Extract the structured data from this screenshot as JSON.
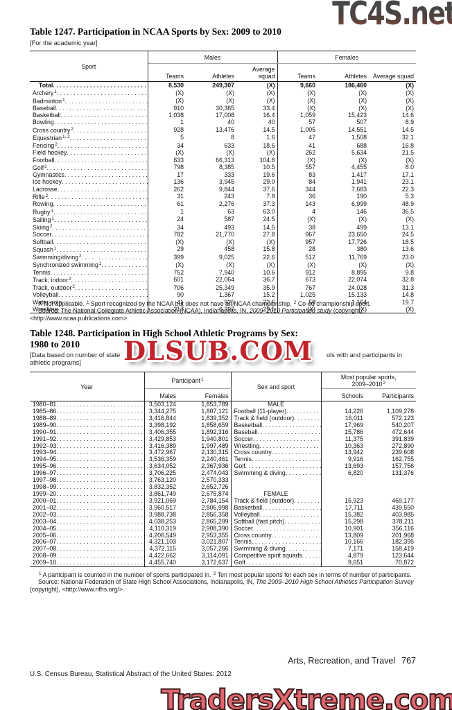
{
  "watermarks": {
    "top_label": "TC4S.net",
    "middle_label": "DLSUB.COM",
    "bottom_label": "TradersXtreme.com"
  },
  "table1247": {
    "title": "Table 1247. Participation in NCAA Sports by Sex: 2009 to 2010",
    "note": "[For the academic year]",
    "header": {
      "sport": "Sport",
      "males": "Males",
      "females": "Females",
      "teams": "Teams",
      "athletes": "Athletes",
      "avg_squad": "Average squad"
    },
    "rows": [
      {
        "label": "Total",
        "sup": "",
        "bold": true,
        "m": [
          "8,530",
          "249,307",
          "(X)"
        ],
        "f": [
          "9,660",
          "186,460",
          "(X)"
        ]
      },
      {
        "label": "Archery",
        "sup": "1",
        "m": [
          "(X)",
          "(X)",
          "(X)"
        ],
        "f": [
          "(X)",
          "(X)",
          "(X)"
        ]
      },
      {
        "label": "Badminton",
        "sup": "1",
        "m": [
          "(X)",
          "(X)",
          "(X)"
        ],
        "f": [
          "(X)",
          "(X)",
          "(X)"
        ]
      },
      {
        "label": "Baseball",
        "sup": "",
        "m": [
          "910",
          "30,365",
          "33.4"
        ],
        "f": [
          "(X)",
          "(X)",
          "(X)"
        ]
      },
      {
        "label": "Basketball",
        "sup": "",
        "m": [
          "1,038",
          "17,008",
          "16.4"
        ],
        "f": [
          "1,059",
          "15,423",
          "14.6"
        ]
      },
      {
        "label": "Bowling",
        "sup": "",
        "m": [
          "1",
          "40",
          "40"
        ],
        "f": [
          "57",
          "507",
          "8.9"
        ]
      },
      {
        "label": "Cross country",
        "sup": "2",
        "m": [
          "928",
          "13,476",
          "14.5"
        ],
        "f": [
          "1,005",
          "14,551",
          "14.5"
        ]
      },
      {
        "label": "Equestrian",
        "sup": "1, 2",
        "m": [
          "5",
          "8",
          "1.6"
        ],
        "f": [
          "47",
          "1,508",
          "32.1"
        ]
      },
      {
        "label": "Fencing",
        "sup": "2",
        "m": [
          "34",
          "633",
          "18.6"
        ],
        "f": [
          "41",
          "688",
          "16.8"
        ]
      },
      {
        "label": "Field hockey",
        "sup": "",
        "m": [
          "(X)",
          "(X)",
          "(X)"
        ],
        "f": [
          "262",
          "5,634",
          "21.5"
        ]
      },
      {
        "label": "Football",
        "sup": "",
        "m": [
          "633",
          "66,313",
          "104.8"
        ],
        "f": [
          "(X)",
          "(X)",
          "(X)"
        ]
      },
      {
        "label": "Golf",
        "sup": "2",
        "m": [
          "798",
          "8,385",
          "10.5"
        ],
        "f": [
          "557",
          "4,455",
          "8.0"
        ]
      },
      {
        "label": "Gymnastics",
        "sup": "",
        "m": [
          "17",
          "333",
          "19.6"
        ],
        "f": [
          "83",
          "1,417",
          "17.1"
        ]
      },
      {
        "label": "Ice hockey",
        "sup": "",
        "m": [
          "136",
          "3,945",
          "29.0"
        ],
        "f": [
          "84",
          "1,941",
          "23.1"
        ]
      },
      {
        "label": "Lacrosse",
        "sup": "",
        "m": [
          "262",
          "9,844",
          "37.6"
        ],
        "f": [
          "344",
          "7,683",
          "22.3"
        ]
      },
      {
        "label": "Rifle",
        "sup": "2",
        "m": [
          "31",
          "243",
          "7.8"
        ],
        "f": [
          "36",
          "190",
          "5.3"
        ]
      },
      {
        "label": "Rowing",
        "sup": "",
        "m": [
          "61",
          "2,276",
          "37.3"
        ],
        "f": [
          "143",
          "6,999",
          "48.9"
        ]
      },
      {
        "label": "Rugby",
        "sup": "1",
        "m": [
          "1",
          "63",
          "63.0"
        ],
        "f": [
          "4",
          "146",
          "36.5"
        ]
      },
      {
        "label": "Sailing",
        "sup": "1",
        "m": [
          "24",
          "587",
          "24.5"
        ],
        "f": [
          "(X)",
          "(X)",
          "(X)"
        ]
      },
      {
        "label": "Skiing",
        "sup": "2",
        "m": [
          "34",
          "493",
          "14.5"
        ],
        "f": [
          "38",
          "499",
          "13.1"
        ]
      },
      {
        "label": "Soccer",
        "sup": "",
        "m": [
          "782",
          "21,770",
          "27.8"
        ],
        "f": [
          "967",
          "23,650",
          "24.5"
        ]
      },
      {
        "label": "Softball",
        "sup": "",
        "m": [
          "(X)",
          "(X)",
          "(X)"
        ],
        "f": [
          "957",
          "17,726",
          "18.5"
        ]
      },
      {
        "label": "Squash",
        "sup": "1",
        "m": [
          "29",
          "458",
          "15.8"
        ],
        "f": [
          "28",
          "380",
          "13.6"
        ]
      },
      {
        "label": "Swimming/diving",
        "sup": "2",
        "m": [
          "399",
          "9,025",
          "22.6"
        ],
        "f": [
          "512",
          "11,769",
          "23.0"
        ]
      },
      {
        "label": "Synchronized swimming",
        "sup": "1",
        "m": [
          "(X)",
          "(X)",
          "(X)"
        ],
        "f": [
          "(X)",
          "(X)",
          "(X)"
        ]
      },
      {
        "label": "Tennis",
        "sup": "",
        "m": [
          "752",
          "7,940",
          "10.6"
        ],
        "f": [
          "912",
          "8,895",
          "9.8"
        ]
      },
      {
        "label": "Track, indoor",
        "sup": "2",
        "m": [
          "601",
          "22,064",
          "36.7"
        ],
        "f": [
          "673",
          "22,074",
          "32.8"
        ]
      },
      {
        "label": "Track, outdoor",
        "sup": "2",
        "m": [
          "706",
          "25,349",
          "35.9"
        ],
        "f": [
          "767",
          "24,028",
          "31.3"
        ]
      },
      {
        "label": "Volleyball",
        "sup": "",
        "m": [
          "90",
          "1,367",
          "15.2"
        ],
        "f": [
          "1,025",
          "15,133",
          "14.8"
        ]
      },
      {
        "label": "Water polo",
        "sup": "",
        "m": [
          "41",
          "925",
          "22.6"
        ],
        "f": [
          "59",
          "1,164",
          "19.7"
        ]
      },
      {
        "label": "Wrestling",
        "sup": "",
        "m": [
          "217",
          "6,397",
          "29.5"
        ],
        "f": [
          "(X)",
          "(X)",
          "(X)"
        ]
      }
    ],
    "footnotes": [
      {
        "segs": [
          {
            "t": "X Not applicable. "
          },
          {
            "t": "1",
            "sup": true
          },
          {
            "t": " Sport recognized by the NCAA but does not have an NCAA championship. "
          },
          {
            "t": "2",
            "sup": true
          },
          {
            "t": " Co-ed championship sport."
          }
        ]
      },
      {
        "segs": [
          {
            "t": "Source: The National Collegiate Athletic Association (NCAA), Indianapolis, IN, "
          },
          {
            "t": "2009–2010 Participation study",
            "i": true
          },
          {
            "t": " (copyright), <http://www.ncaa.publications.com>."
          }
        ]
      }
    ]
  },
  "table1248": {
    "title_line1": "Table 1248. Participation in High School Athletic Programs by Sex:",
    "title_line2": "1980 to 2010",
    "note_parts": [
      "[Data based on number of state",
      "ols with and participants in",
      "athletic programs]"
    ],
    "header": {
      "year": "Year",
      "participant": "Participant",
      "participant_sup": "1",
      "males": "Males",
      "females": "Females",
      "sex_and_sport": "Sex and sport",
      "most_popular_line1": "Most popular sports,",
      "most_popular_line2": "2009–2010",
      "most_popular_sup": "2",
      "schools": "Schools",
      "participants": "Participants"
    },
    "section_labels": {
      "male": "MALE",
      "female": "FEMALE"
    },
    "rows": [
      {
        "year": "1980–81",
        "males": "3,503,124",
        "females": "1,853,789",
        "sport": "MALE",
        "sport_header": true,
        "schools": "",
        "participants": ""
      },
      {
        "year": "1985–86",
        "males": "3,344,275",
        "females": "1,807,121",
        "sport": "Football (11-player)",
        "schools": "14,226",
        "participants": "1,109,278"
      },
      {
        "year": "1988–89",
        "males": "3,416,844",
        "females": "1,839,352",
        "sport": "Track & field (outdoor)",
        "schools": "16,011",
        "participants": "572,123"
      },
      {
        "year": "1989–90",
        "males": "3,398,192",
        "females": "1,858,659",
        "sport": "Basketball",
        "schools": "17,969",
        "participants": "540,207"
      },
      {
        "year": "1990–91",
        "males": "3,406,355",
        "females": "1,892,316",
        "sport": "Baseball",
        "schools": "15,786",
        "participants": "472,644"
      },
      {
        "year": "1991–92",
        "males": "3,429,853",
        "females": "1,940,801",
        "sport": "Soccer",
        "schools": "11,375",
        "participants": "391,839"
      },
      {
        "year": "1992–93",
        "males": "3,416,389",
        "females": "1,997,489",
        "sport": "Wrestling",
        "schools": "10,363",
        "participants": "272,890"
      },
      {
        "year": "1993–94",
        "males": "3,472,967",
        "females": "2,130,315",
        "sport": "Cross country",
        "schools": "13,942",
        "participants": "239,608"
      },
      {
        "year": "1994–95",
        "males": "3,536,359",
        "females": "2,240,461",
        "sport": "Tennis",
        "schools": "9,916",
        "participants": "162,755"
      },
      {
        "year": "1995–96",
        "males": "3,634,052",
        "females": "2,367,936",
        "sport": "Golf",
        "schools": "13,693",
        "participants": "157,756"
      },
      {
        "year": "1996–97",
        "males": "3,706,225",
        "females": "2,474,043",
        "sport": "Swimming & diving",
        "schools": "6,820",
        "participants": "131,376"
      },
      {
        "year": "1997–98",
        "males": "3,763,120",
        "females": "2,570,333",
        "sport": "",
        "schools": "",
        "participants": ""
      },
      {
        "year": "1998–99",
        "males": "3,832,352",
        "females": "2,652,726",
        "sport": "",
        "schools": "",
        "participants": ""
      },
      {
        "year": "1999–20",
        "males": "3,861,749",
        "females": "2,675,874",
        "sport": "FEMALE",
        "sport_header": true,
        "schools": "",
        "participants": ""
      },
      {
        "year": "2000–01",
        "males": "3,921,069",
        "females": "2,784,154",
        "sport": "Track & field (outdoor)",
        "schools": "15,923",
        "participants": "469,177"
      },
      {
        "year": "2001–02",
        "males": "3,960,517",
        "females": "2,806,998",
        "sport": "Basketball",
        "schools": "17,711",
        "participants": "439,550"
      },
      {
        "year": "2002–03",
        "males": "3,988,738",
        "females": "2,856,358",
        "sport": "Volleyball",
        "schools": "15,382",
        "participants": "403,985"
      },
      {
        "year": "2003–04",
        "males": "4,038,253",
        "females": "2,865,299",
        "sport": "Softball (fast pitch)",
        "schools": "15,298",
        "participants": "378,211"
      },
      {
        "year": "2004–05",
        "males": "4,110,319",
        "females": "2,908,390",
        "sport": "Soccer",
        "schools": "10,901",
        "participants": "356,116"
      },
      {
        "year": "2005–06",
        "males": "4,206,549",
        "females": "2,953,355",
        "sport": "Cross country",
        "schools": "13,809",
        "participants": "201,968"
      },
      {
        "year": "2006–07",
        "males": "4,321,103",
        "females": "3,021,807",
        "sport": "Tennis",
        "schools": "10,166",
        "participants": "182,395"
      },
      {
        "year": "2007–08",
        "males": "4,372,115",
        "females": "3,057,266",
        "sport": "Swimming & diving",
        "schools": "7,171",
        "participants": "158,419"
      },
      {
        "year": "2008–09",
        "males": "4,422,662",
        "females": "3,114,091",
        "sport": "Competitive spirit squads",
        "schools": "4,879",
        "participants": "123,644"
      },
      {
        "year": "2009–10",
        "males": "4,455,740",
        "females": "3,172,637",
        "sport": "Golf",
        "schools": "9,651",
        "participants": "70,872"
      }
    ],
    "footnotes": [
      {
        "segs": [
          {
            "t": "1",
            "sup": true
          },
          {
            "t": " A participant is counted in the number of sports participated in. "
          },
          {
            "t": "2",
            "sup": true
          },
          {
            "t": " Ten most popular sports for each sex in terms of number of participants."
          }
        ]
      },
      {
        "segs": [
          {
            "t": "Source: National Federation of State High School Associations, Indianapolis, IN, "
          },
          {
            "t": "The 2009–2010 High School Athletics Participation Survey",
            "i": true
          },
          {
            "t": " (copyright), <http://www.nfhs.org/>."
          }
        ]
      }
    ]
  },
  "footer": {
    "section": "Arts, Recreation, and Travel",
    "page_number": "767",
    "credit": "U.S. Census Bureau, Statistical Abstract of the United States: 2012"
  }
}
